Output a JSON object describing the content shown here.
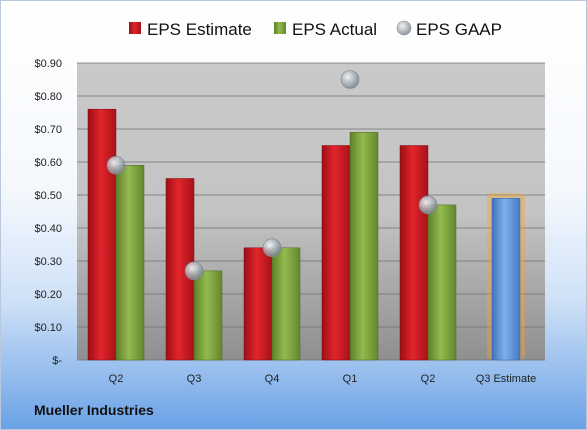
{
  "company": "Mueller Industries",
  "colors": {
    "estimate": "#c8161d",
    "actual": "#7ea33f",
    "gaap": "#a8b0b8",
    "projected": "#5b8fd6",
    "projected_glow": "#f5a623"
  },
  "chart_data": {
    "type": "bar",
    "categories": [
      "Q2",
      "Q3",
      "Q4",
      "Q1",
      "Q2",
      "Q3 Estimate"
    ],
    "ylim": [
      0,
      0.9
    ],
    "yticks": [
      0,
      0.1,
      0.2,
      0.3,
      0.4,
      0.5,
      0.6,
      0.7,
      0.8,
      0.9
    ],
    "ytick_labels": [
      "$-",
      "$0.10",
      "$0.20",
      "$0.30",
      "$0.40",
      "$0.50",
      "$0.60",
      "$0.70",
      "$0.80",
      "$0.90"
    ],
    "legend_position": "top",
    "grid": true,
    "series": [
      {
        "name": "EPS Estimate",
        "values": [
          0.76,
          0.55,
          0.34,
          0.65,
          0.65,
          0.49
        ]
      },
      {
        "name": "EPS Actual",
        "values": [
          0.59,
          0.27,
          0.34,
          0.69,
          0.47,
          null
        ]
      },
      {
        "name": "EPS GAAP",
        "values": [
          0.59,
          0.27,
          0.34,
          0.85,
          0.47,
          null
        ]
      }
    ]
  }
}
